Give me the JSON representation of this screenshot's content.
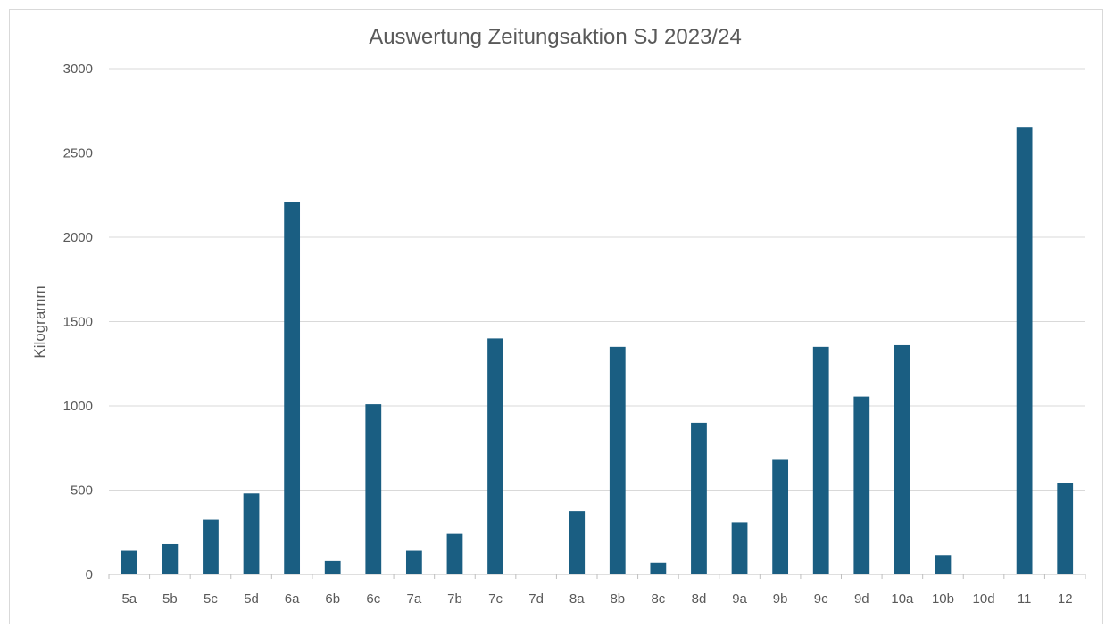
{
  "chart_data": {
    "type": "bar",
    "title": "Auswertung Zeitungsaktion SJ 2023/24",
    "xlabel": "",
    "ylabel": "Kilogramm",
    "ylim": [
      0,
      3000
    ],
    "yticks": [
      0,
      500,
      1000,
      1500,
      2000,
      2500,
      3000
    ],
    "grid": true,
    "legend": "none",
    "bar_color": "#1a5e82",
    "categories": [
      "5a",
      "5b",
      "5c",
      "5d",
      "6a",
      "6b",
      "6c",
      "7a",
      "7b",
      "7c",
      "7d",
      "8a",
      "8b",
      "8c",
      "8d",
      "9a",
      "9b",
      "9c",
      "9d",
      "10a",
      "10b",
      "10d",
      "11",
      "12"
    ],
    "values": [
      140,
      180,
      325,
      480,
      2210,
      80,
      1010,
      140,
      240,
      1400,
      0,
      375,
      1350,
      70,
      900,
      310,
      680,
      1350,
      1055,
      1360,
      115,
      0,
      2655,
      540
    ]
  }
}
